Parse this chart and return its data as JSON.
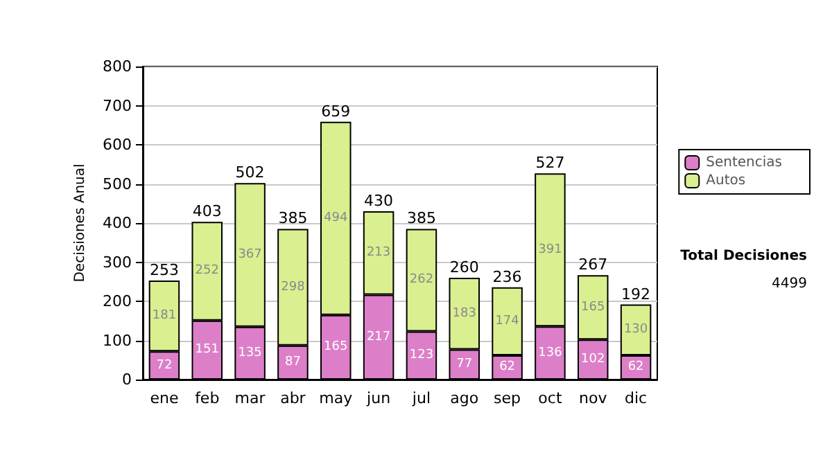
{
  "chart_data": {
    "type": "bar",
    "stacked": true,
    "ylabel": "Decisiones Anual",
    "categories": [
      "ene",
      "feb",
      "mar",
      "abr",
      "may",
      "jun",
      "jul",
      "ago",
      "sep",
      "oct",
      "nov",
      "dic"
    ],
    "series": [
      {
        "name": "Sentencias",
        "color": "#dc7fc8",
        "values": [
          72,
          151,
          135,
          87,
          165,
          217,
          123,
          77,
          62,
          136,
          102,
          62
        ]
      },
      {
        "name": "Autos",
        "color": "#daef90",
        "values": [
          181,
          252,
          367,
          298,
          494,
          213,
          262,
          183,
          174,
          391,
          165,
          130
        ]
      }
    ],
    "totals": [
      "253",
      "403",
      "502",
      "385",
      "659",
      "430",
      "385",
      "260",
      "236",
      "527",
      "267",
      "192"
    ],
    "ylim": [
      0,
      800
    ],
    "yticks": [
      0,
      100,
      200,
      300,
      400,
      500,
      600,
      700,
      800
    ],
    "grid": "y",
    "legend": "right",
    "data_labels": true,
    "annotations": [
      "Total Decisiones",
      "4499"
    ]
  }
}
